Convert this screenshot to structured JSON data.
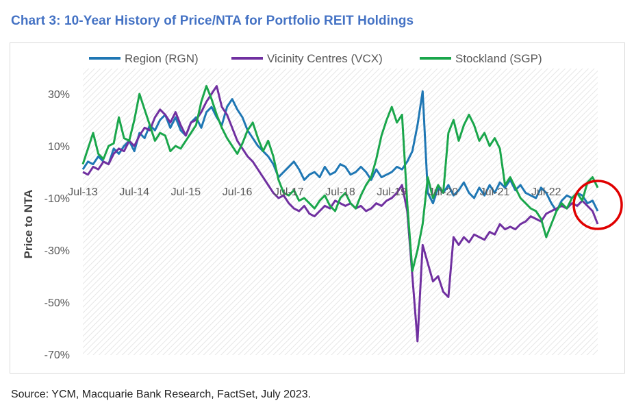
{
  "title": "Chart 3: 10-Year History of Price/NTA for Portfolio REIT Holdings",
  "source": "Source: YCM, Macquarie Bank Research, FactSet, July 2023.",
  "colors": {
    "region": "#1f77b4",
    "vicinity": "#7030a0",
    "stockland": "#1aa64b",
    "highlight": "#e00000"
  },
  "chart_data": {
    "type": "line",
    "ylabel": "Price to NTA",
    "ylim": [
      -70,
      40
    ],
    "yticks": [
      "30%",
      "10%",
      "-10%",
      "-30%",
      "-50%",
      "-70%"
    ],
    "ytick_values": [
      30,
      10,
      -10,
      -30,
      -50,
      -70
    ],
    "xticks": [
      "Jul-13",
      "Jul-14",
      "Jul-15",
      "Jul-16",
      "Jul-17",
      "Jul-18",
      "Jul-19",
      "Jul-20",
      "Jul-21",
      "Jul-22"
    ],
    "legend_position": "top",
    "annotation": "red circle around the most recent values",
    "series": [
      {
        "name": "Region (RGN)",
        "color": "#1f77b4",
        "x": [
          2013.5,
          2013.6,
          2013.7,
          2013.8,
          2013.9,
          2014.0,
          2014.1,
          2014.2,
          2014.3,
          2014.4,
          2014.5,
          2014.6,
          2014.7,
          2014.8,
          2014.9,
          2015.0,
          2015.1,
          2015.2,
          2015.3,
          2015.4,
          2015.5,
          2015.6,
          2015.7,
          2015.8,
          2015.9,
          2016.0,
          2016.1,
          2016.2,
          2016.3,
          2016.4,
          2016.5,
          2016.6,
          2016.7,
          2016.8,
          2016.9,
          2017.0,
          2017.1,
          2017.2,
          2017.3,
          2017.4,
          2017.5,
          2017.6,
          2017.7,
          2017.8,
          2017.9,
          2018.0,
          2018.1,
          2018.2,
          2018.3,
          2018.4,
          2018.5,
          2018.6,
          2018.7,
          2018.8,
          2018.9,
          2019.0,
          2019.1,
          2019.2,
          2019.3,
          2019.4,
          2019.5,
          2019.6,
          2019.7,
          2019.8,
          2019.9,
          2020.0,
          2020.1,
          2020.2,
          2020.3,
          2020.4,
          2020.5,
          2020.6,
          2020.7,
          2020.8,
          2020.9,
          2021.0,
          2021.1,
          2021.2,
          2021.3,
          2021.4,
          2021.5,
          2021.6,
          2021.7,
          2021.8,
          2021.9,
          2022.0,
          2022.1,
          2022.2,
          2022.3,
          2022.4,
          2022.5,
          2022.6,
          2022.7,
          2022.8,
          2022.9,
          2023.0,
          2023.1,
          2023.2,
          2023.3,
          2023.4,
          2023.5
        ],
        "values": [
          1,
          4,
          3,
          6,
          4,
          3,
          9,
          7,
          10,
          12,
          8,
          15,
          13,
          18,
          16,
          20,
          22,
          17,
          21,
          16,
          14,
          19,
          21,
          17,
          23,
          25,
          21,
          18,
          25,
          28,
          24,
          21,
          16,
          13,
          10,
          8,
          6,
          3,
          -2,
          0,
          2,
          4,
          1,
          -3,
          -1,
          0,
          -2,
          2,
          -1,
          0,
          3,
          2,
          -1,
          0,
          2,
          0,
          -3,
          1,
          -2,
          -1,
          0,
          2,
          1,
          4,
          8,
          18,
          31,
          -8,
          -12,
          -6,
          -8,
          -5,
          -9,
          -7,
          -4,
          -8,
          -10,
          -6,
          -9,
          -5,
          -8,
          -4,
          -6,
          -3,
          -7,
          -5,
          -8,
          -9,
          -10,
          -6,
          -8,
          -12,
          -15,
          -11,
          -9,
          -10,
          -8,
          -9,
          -12,
          -11,
          -15
        ]
      },
      {
        "name": "Vicinity Centres (VCX)",
        "color": "#7030a0",
        "x": [
          2013.5,
          2013.6,
          2013.7,
          2013.8,
          2013.9,
          2014.0,
          2014.1,
          2014.2,
          2014.3,
          2014.4,
          2014.5,
          2014.6,
          2014.7,
          2014.8,
          2014.9,
          2015.0,
          2015.1,
          2015.2,
          2015.3,
          2015.4,
          2015.5,
          2015.6,
          2015.7,
          2015.8,
          2015.9,
          2016.0,
          2016.1,
          2016.2,
          2016.3,
          2016.4,
          2016.5,
          2016.6,
          2016.7,
          2016.8,
          2016.9,
          2017.0,
          2017.1,
          2017.2,
          2017.3,
          2017.4,
          2017.5,
          2017.6,
          2017.7,
          2017.8,
          2017.9,
          2018.0,
          2018.1,
          2018.2,
          2018.3,
          2018.4,
          2018.5,
          2018.6,
          2018.7,
          2018.8,
          2018.9,
          2019.0,
          2019.1,
          2019.2,
          2019.3,
          2019.4,
          2019.5,
          2019.6,
          2019.7,
          2019.8,
          2019.9,
          2020.0,
          2020.1,
          2020.2,
          2020.3,
          2020.4,
          2020.5,
          2020.6,
          2020.7,
          2020.8,
          2020.9,
          2021.0,
          2021.1,
          2021.2,
          2021.3,
          2021.4,
          2021.5,
          2021.6,
          2021.7,
          2021.8,
          2021.9,
          2022.0,
          2022.1,
          2022.2,
          2022.3,
          2022.4,
          2022.5,
          2022.6,
          2022.7,
          2022.8,
          2022.9,
          2023.0,
          2023.1,
          2023.2,
          2023.3,
          2023.4,
          2023.5
        ],
        "values": [
          0,
          -1,
          2,
          1,
          4,
          3,
          7,
          9,
          8,
          12,
          10,
          14,
          17,
          16,
          21,
          24,
          22,
          19,
          23,
          18,
          14,
          19,
          20,
          23,
          27,
          30,
          33,
          25,
          22,
          17,
          12,
          9,
          6,
          4,
          1,
          -2,
          -5,
          -8,
          -10,
          -9,
          -12,
          -14,
          -15,
          -13,
          -16,
          -17,
          -15,
          -13,
          -14,
          -11,
          -12,
          -13,
          -12,
          -14,
          -13,
          -15,
          -14,
          -12,
          -13,
          -11,
          -10,
          -8,
          -5,
          -15,
          -40,
          -65,
          -28,
          -35,
          -42,
          -40,
          -46,
          -48,
          -25,
          -28,
          -25,
          -27,
          -24,
          -25,
          -26,
          -23,
          -24,
          -20,
          -22,
          -21,
          -22,
          -20,
          -19,
          -17,
          -18,
          -19,
          -16,
          -15,
          -14,
          -13,
          -14,
          -12,
          -13,
          -11,
          -13,
          -15,
          -20
        ]
      },
      {
        "name": "Stockland (SGP)",
        "color": "#1aa64b",
        "x": [
          2013.5,
          2013.6,
          2013.7,
          2013.8,
          2013.9,
          2014.0,
          2014.1,
          2014.2,
          2014.3,
          2014.4,
          2014.5,
          2014.6,
          2014.7,
          2014.8,
          2014.9,
          2015.0,
          2015.1,
          2015.2,
          2015.3,
          2015.4,
          2015.5,
          2015.6,
          2015.7,
          2015.8,
          2015.9,
          2016.0,
          2016.1,
          2016.2,
          2016.3,
          2016.4,
          2016.5,
          2016.6,
          2016.7,
          2016.8,
          2016.9,
          2017.0,
          2017.1,
          2017.2,
          2017.3,
          2017.4,
          2017.5,
          2017.6,
          2017.7,
          2017.8,
          2017.9,
          2018.0,
          2018.1,
          2018.2,
          2018.3,
          2018.4,
          2018.5,
          2018.6,
          2018.7,
          2018.8,
          2018.9,
          2019.0,
          2019.1,
          2019.2,
          2019.3,
          2019.4,
          2019.5,
          2019.6,
          2019.7,
          2019.8,
          2019.9,
          2020.0,
          2020.1,
          2020.2,
          2020.3,
          2020.4,
          2020.5,
          2020.6,
          2020.7,
          2020.8,
          2020.9,
          2021.0,
          2021.1,
          2021.2,
          2021.3,
          2021.4,
          2021.5,
          2021.6,
          2021.7,
          2021.8,
          2021.9,
          2022.0,
          2022.1,
          2022.2,
          2022.3,
          2022.4,
          2022.5,
          2022.6,
          2022.7,
          2022.8,
          2022.9,
          2023.0,
          2023.1,
          2023.2,
          2023.3,
          2023.4,
          2023.5
        ],
        "values": [
          3,
          9,
          15,
          7,
          5,
          10,
          11,
          21,
          13,
          12,
          20,
          30,
          24,
          18,
          12,
          15,
          14,
          8,
          10,
          9,
          12,
          15,
          18,
          27,
          33,
          28,
          22,
          17,
          13,
          10,
          7,
          11,
          16,
          19,
          13,
          8,
          12,
          6,
          -3,
          -8,
          -9,
          -7,
          -11,
          -10,
          -12,
          -14,
          -11,
          -9,
          -13,
          -15,
          -10,
          -8,
          -12,
          -14,
          -9,
          -5,
          -2,
          5,
          14,
          20,
          25,
          19,
          22,
          -12,
          -38,
          -30,
          -20,
          -2,
          -10,
          -5,
          -8,
          15,
          20,
          12,
          18,
          22,
          18,
          12,
          15,
          10,
          13,
          9,
          -5,
          -2,
          -6,
          -10,
          -12,
          -14,
          -15,
          -18,
          -25,
          -20,
          -15,
          -12,
          -14,
          -10,
          -8,
          -11,
          -4,
          -2,
          -6
        ]
      }
    ]
  }
}
